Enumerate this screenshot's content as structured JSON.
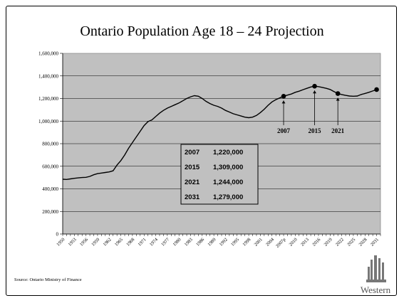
{
  "slide": {
    "title": "Ontario Population Age 18 – 24 Projection",
    "source": "Source:  Ontario Ministry of Finance",
    "logo_text": "Western"
  },
  "chart_data": {
    "type": "line",
    "title": "Ontario Population Age 18 – 24 Projection",
    "xlabel": "",
    "ylabel": "",
    "xlim": [
      1950,
      2032
    ],
    "ylim": [
      0,
      1600000
    ],
    "yticks": [
      0,
      200000,
      400000,
      600000,
      800000,
      1000000,
      1200000,
      1400000,
      1600000
    ],
    "ytick_labels": [
      "0",
      "200,000",
      "400,000",
      "600,000",
      "800,000",
      "1,000,000",
      "1,200,000",
      "1,400,000",
      "1,600,000"
    ],
    "xticks": [
      1950,
      1953,
      1956,
      1959,
      1962,
      1965,
      1968,
      1971,
      1974,
      1977,
      1980,
      1983,
      1986,
      1989,
      1992,
      1995,
      1998,
      2001,
      2004,
      2007,
      2010,
      2013,
      2016,
      2019,
      2022,
      2025,
      2028,
      2031
    ],
    "xtick_labels": [
      "1950",
      "1953",
      "1956",
      "1959",
      "1962",
      "1965",
      "1968",
      "1971",
      "1974",
      "1977",
      "1980",
      "1983",
      "1986",
      "1989",
      "1992",
      "1995",
      "1998",
      "2001",
      "2004",
      "2007p",
      "2010",
      "2013",
      "2016",
      "2019",
      "2022",
      "2025",
      "2028",
      "2031"
    ],
    "grid": true,
    "background": "#c0c0c0",
    "line_color": "#000000",
    "series": [
      {
        "x": [
          1950,
          1951,
          1952,
          1953,
          1954,
          1955,
          1956,
          1957,
          1958,
          1959,
          1960,
          1961,
          1962,
          1963,
          1964,
          1965,
          1966,
          1967,
          1968,
          1969,
          1970,
          1971,
          1972,
          1973,
          1974,
          1975,
          1976,
          1977,
          1978,
          1979,
          1980,
          1981,
          1982,
          1983,
          1984,
          1985,
          1986,
          1987,
          1988,
          1989,
          1990,
          1991,
          1992,
          1993,
          1994,
          1995,
          1996,
          1997,
          1998,
          1999,
          2000,
          2001,
          2002,
          2003,
          2004,
          2005,
          2006,
          2007,
          2008,
          2009,
          2010,
          2011,
          2012,
          2013,
          2014,
          2015,
          2016,
          2017,
          2018,
          2019,
          2020,
          2021,
          2022,
          2023,
          2024,
          2025,
          2026,
          2027,
          2028,
          2029,
          2030,
          2031
        ],
        "values": [
          485000,
          483000,
          488000,
          493000,
          497000,
          500000,
          502000,
          510000,
          525000,
          535000,
          540000,
          545000,
          550000,
          560000,
          610000,
          650000,
          700000,
          760000,
          810000,
          860000,
          910000,
          960000,
          995000,
          1010000,
          1040000,
          1070000,
          1095000,
          1115000,
          1130000,
          1145000,
          1160000,
          1180000,
          1200000,
          1215000,
          1225000,
          1220000,
          1200000,
          1175000,
          1155000,
          1140000,
          1130000,
          1115000,
          1095000,
          1080000,
          1065000,
          1055000,
          1045000,
          1035000,
          1030000,
          1035000,
          1050000,
          1075000,
          1105000,
          1140000,
          1170000,
          1190000,
          1205000,
          1220000,
          1230000,
          1240000,
          1255000,
          1265000,
          1278000,
          1290000,
          1302000,
          1309000,
          1305000,
          1298000,
          1290000,
          1280000,
          1262000,
          1244000,
          1235000,
          1228000,
          1222000,
          1220000,
          1222000,
          1235000,
          1245000,
          1255000,
          1267000,
          1279000
        ]
      }
    ],
    "highlight_points": [
      {
        "x": 2007,
        "y": 1220000
      },
      {
        "x": 2015,
        "y": 1309000
      },
      {
        "x": 2021,
        "y": 1244000
      },
      {
        "x": 2031,
        "y": 1279000
      }
    ],
    "annotations": [
      {
        "label": "2007",
        "x": 2007
      },
      {
        "label": "2015",
        "x": 2015
      },
      {
        "label": "2021",
        "x": 2021
      }
    ],
    "table": [
      {
        "year": "2007",
        "value": "1,220,000"
      },
      {
        "year": "2015",
        "value": "1,309,000"
      },
      {
        "year": "2021",
        "value": "1,244,000"
      },
      {
        "year": "2031",
        "value": "1,279,000"
      }
    ]
  }
}
